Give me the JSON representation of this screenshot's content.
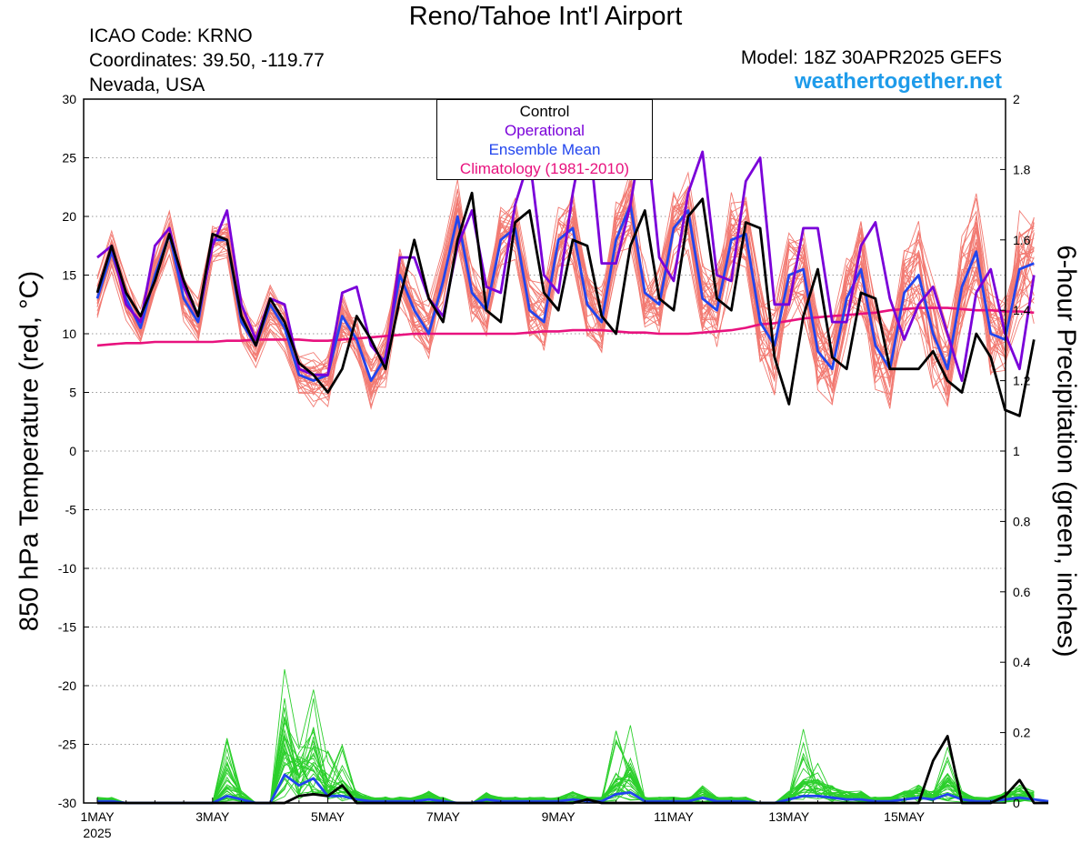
{
  "header": {
    "title": "Reno/Tahoe Int'l Airport",
    "icao": "ICAO Code: KRNO",
    "coords": "Coordinates: 39.50, -119.77",
    "region": "Nevada, USA",
    "model": "Model: 18Z 30APR2025 GEFS",
    "site": "weathertogether.net"
  },
  "colors": {
    "control": "#000000",
    "operational": "#7a00d9",
    "ensemble_mean": "#2245ee",
    "climatology": "#e8127e",
    "members_temp": "#f27a72",
    "members_precip": "#2bcf2b",
    "site": "#1e9bea"
  },
  "chart_data": {
    "type": "line",
    "title": "Reno/Tahoe Int'l Airport",
    "ylabel": "850 hPa Temperature (red, °C)",
    "y2label": "6-hour Precipitation (green, inches)",
    "ylim": [
      -30,
      30
    ],
    "y2lim": [
      0,
      2
    ],
    "yticks": [
      "30",
      "25",
      "20",
      "15",
      "10",
      "5",
      "0",
      "-5",
      "-10",
      "-15",
      "-20",
      "-25",
      "-30"
    ],
    "y2ticks": [
      "2",
      "1.8",
      "1.6",
      "1.4",
      "1.2",
      "1",
      "0.8",
      "0.6",
      "0.4",
      "0.2",
      "0"
    ],
    "xlabels": [
      "1MAY",
      "3MAY",
      "5MAY",
      "7MAY",
      "9MAY",
      "11MAY",
      "13MAY",
      "15MAY"
    ],
    "xlabel_year": "2025",
    "grid": true,
    "legend_position": "top-center",
    "legend": [
      "Control",
      "Operational",
      "Ensemble Mean",
      "Climatology (1981-2010)"
    ],
    "series": [
      {
        "name": "Control",
        "role": "temperature",
        "values": [
          13.5,
          17.5,
          13.5,
          11.5,
          14.5,
          18.5,
          14.5,
          11.5,
          18.5,
          18.0,
          11.5,
          9.0,
          13.0,
          11.0,
          7.5,
          6.5,
          5.0,
          7.0,
          11.5,
          9.5,
          7.0,
          13.0,
          18.0,
          13.0,
          11.0,
          18.0,
          22.0,
          12.0,
          11.0,
          19.5,
          20.5,
          13.5,
          12.0,
          18.0,
          17.5,
          11.5,
          10.0,
          17.5,
          20.5,
          13.0,
          12.0,
          20.0,
          21.5,
          13.0,
          12.0,
          19.5,
          19.0,
          8.0,
          4.0,
          11.5,
          15.5,
          8.0,
          7.0,
          13.5,
          13.0,
          7.0,
          7.0,
          7.0,
          8.5,
          6.0,
          5.0,
          10.0,
          8.0,
          3.5,
          3.0,
          9.5
        ]
      },
      {
        "name": "Operational",
        "role": "temperature",
        "values": [
          16.5,
          17.5,
          12.5,
          11.0,
          17.5,
          19.0,
          14.0,
          11.5,
          17.5,
          20.5,
          12.5,
          9.5,
          13.0,
          12.5,
          7.0,
          6.5,
          6.5,
          13.5,
          14.0,
          9.0,
          7.5,
          16.5,
          16.5,
          13.0,
          11.5,
          17.5,
          20.5,
          14.0,
          13.5,
          21.0,
          25.0,
          15.0,
          13.5,
          22.0,
          28.5,
          16.0,
          16.0,
          21.0,
          28.5,
          16.5,
          14.5,
          22.0,
          25.5,
          15.0,
          14.5,
          23.0,
          25.0,
          12.5,
          12.5,
          19.0,
          19.0,
          11.0,
          11.0,
          17.5,
          19.5,
          13.0,
          9.5,
          12.5,
          14.0,
          10.0,
          6.0,
          13.5,
          15.5,
          10.0,
          7.0,
          15.0
        ]
      },
      {
        "name": "Ensemble Mean",
        "role": "temperature",
        "values": [
          13.0,
          17.0,
          13.0,
          10.5,
          15.0,
          18.5,
          13.0,
          11.0,
          18.0,
          18.0,
          11.0,
          9.0,
          12.5,
          10.5,
          6.5,
          6.0,
          6.5,
          11.5,
          9.5,
          6.0,
          8.0,
          15.0,
          12.0,
          10.0,
          14.5,
          20.0,
          13.5,
          12.0,
          18.0,
          19.0,
          12.0,
          11.0,
          18.0,
          19.0,
          12.5,
          11.0,
          18.0,
          21.0,
          13.5,
          12.5,
          19.0,
          20.5,
          13.0,
          12.0,
          18.0,
          18.5,
          11.0,
          9.0,
          15.0,
          15.5,
          8.5,
          7.0,
          13.0,
          15.5,
          9.0,
          7.0,
          13.5,
          15.0,
          10.0,
          7.0,
          14.0,
          17.0,
          10.0,
          9.5,
          15.5,
          16.0
        ]
      },
      {
        "name": "Climatology (1981-2010)",
        "role": "temperature",
        "values": [
          9.0,
          9.1,
          9.2,
          9.2,
          9.3,
          9.3,
          9.3,
          9.3,
          9.3,
          9.4,
          9.4,
          9.5,
          9.5,
          9.5,
          9.5,
          9.4,
          9.4,
          9.5,
          9.6,
          9.7,
          9.8,
          9.9,
          10.0,
          10.0,
          10.0,
          10.0,
          10.0,
          10.0,
          10.0,
          10.0,
          10.1,
          10.2,
          10.2,
          10.3,
          10.3,
          10.3,
          10.2,
          10.1,
          10.1,
          10.0,
          10.0,
          10.0,
          10.1,
          10.2,
          10.3,
          10.5,
          10.8,
          10.9,
          11.1,
          11.3,
          11.4,
          11.5,
          11.6,
          11.7,
          11.8,
          12.0,
          12.1,
          12.2,
          12.2,
          12.2,
          12.1,
          12.0,
          12.0,
          11.9,
          11.9,
          11.8
        ]
      },
      {
        "name": "Control",
        "role": "precipitation",
        "values": [
          0,
          0,
          0,
          0,
          0,
          0,
          0,
          0,
          0,
          0,
          0,
          0,
          0,
          0,
          0.02,
          0.025,
          0.02,
          0.05,
          0,
          0,
          0,
          0,
          0,
          0,
          0,
          0,
          0,
          0,
          0,
          0,
          0,
          0,
          0,
          0,
          0.01,
          0,
          0,
          0,
          0,
          0,
          0,
          0,
          0,
          0,
          0,
          0,
          0,
          0,
          0,
          0,
          0,
          0,
          0,
          0,
          0,
          0,
          0,
          0,
          0.12,
          0.19,
          0,
          0,
          0,
          0.02,
          0.065,
          0,
          0
        ]
      },
      {
        "name": "Ensemble Mean",
        "role": "precipitation",
        "values": [
          0.005,
          0.005,
          0,
          0,
          0,
          0,
          0,
          0,
          0,
          0.02,
          0.01,
          0,
          0,
          0.08,
          0.05,
          0.07,
          0.02,
          0.02,
          0.01,
          0.005,
          0.005,
          0.005,
          0.005,
          0.01,
          0.005,
          0,
          0,
          0.01,
          0.005,
          0.005,
          0.005,
          0.005,
          0.005,
          0.01,
          0.005,
          0.005,
          0.025,
          0.03,
          0.005,
          0.005,
          0.005,
          0.005,
          0.015,
          0.005,
          0.005,
          0.005,
          0,
          0,
          0.01,
          0.02,
          0.02,
          0.015,
          0.01,
          0.01,
          0.005,
          0.005,
          0.01,
          0.015,
          0.01,
          0.025,
          0.01,
          0.005,
          0.005,
          0.01,
          0.015,
          0.01,
          0.005
        ]
      }
    ]
  }
}
